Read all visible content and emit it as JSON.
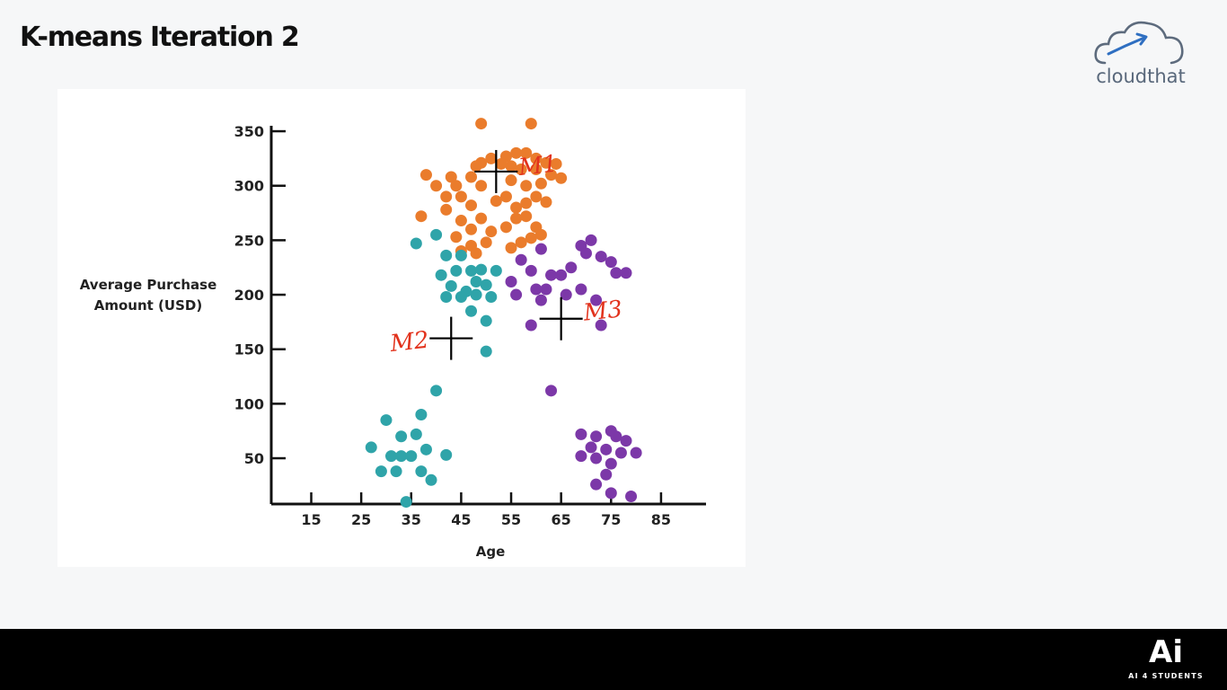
{
  "slide": {
    "title": "K-means Iteration 2"
  },
  "logo": {
    "text": "cloudthat",
    "icon": "cloud-icon"
  },
  "footer": {
    "brand_mark": "Ai",
    "brand_sub": "AI 4 STUDENTS"
  },
  "colors": {
    "cluster_1": "#ea7c2c",
    "cluster_2": "#2fa4a9",
    "cluster_3": "#7c38a8",
    "annotation": "#e2321c",
    "crosshair": "#000000"
  },
  "chart_data": {
    "type": "scatter",
    "title": "",
    "xlabel": "Age",
    "ylabel": "Average Purchase Amount (USD)",
    "xlim": [
      7,
      94
    ],
    "ylim": [
      8,
      355
    ],
    "xticks": [
      15,
      25,
      35,
      45,
      55,
      65,
      75,
      85
    ],
    "yticks": [
      50,
      100,
      150,
      200,
      250,
      300,
      350
    ],
    "grid": false,
    "legend": "none",
    "series": [
      {
        "color": "#ea7c2c",
        "points": [
          [
            49,
            357
          ],
          [
            59,
            357
          ],
          [
            51,
            325
          ],
          [
            54,
            327
          ],
          [
            56,
            330
          ],
          [
            58,
            330
          ],
          [
            53,
            320
          ],
          [
            55,
            318
          ],
          [
            60,
            325
          ],
          [
            62,
            321
          ],
          [
            64,
            320
          ],
          [
            49,
            321
          ],
          [
            48,
            318
          ],
          [
            57,
            315
          ],
          [
            60,
            315
          ],
          [
            38,
            310
          ],
          [
            40,
            300
          ],
          [
            43,
            308
          ],
          [
            44,
            300
          ],
          [
            47,
            308
          ],
          [
            49,
            300
          ],
          [
            55,
            305
          ],
          [
            58,
            300
          ],
          [
            61,
            302
          ],
          [
            63,
            310
          ],
          [
            65,
            307
          ],
          [
            42,
            290
          ],
          [
            45,
            290
          ],
          [
            47,
            282
          ],
          [
            52,
            286
          ],
          [
            54,
            290
          ],
          [
            56,
            280
          ],
          [
            58,
            284
          ],
          [
            60,
            290
          ],
          [
            62,
            285
          ],
          [
            37,
            272
          ],
          [
            42,
            278
          ],
          [
            45,
            268
          ],
          [
            47,
            260
          ],
          [
            49,
            270
          ],
          [
            51,
            258
          ],
          [
            54,
            262
          ],
          [
            56,
            270
          ],
          [
            58,
            272
          ],
          [
            60,
            262
          ],
          [
            44,
            253
          ],
          [
            47,
            245
          ],
          [
            50,
            248
          ],
          [
            55,
            243
          ],
          [
            57,
            248
          ],
          [
            59,
            252
          ],
          [
            61,
            255
          ],
          [
            45,
            240
          ],
          [
            48,
            238
          ]
        ]
      },
      {
        "color": "#2fa4a9",
        "points": [
          [
            36,
            247
          ],
          [
            40,
            255
          ],
          [
            42,
            236
          ],
          [
            45,
            236
          ],
          [
            41,
            218
          ],
          [
            44,
            222
          ],
          [
            47,
            222
          ],
          [
            49,
            223
          ],
          [
            52,
            222
          ],
          [
            43,
            208
          ],
          [
            46,
            203
          ],
          [
            48,
            212
          ],
          [
            50,
            209
          ],
          [
            42,
            198
          ],
          [
            45,
            198
          ],
          [
            48,
            200
          ],
          [
            51,
            198
          ],
          [
            47,
            185
          ],
          [
            50,
            176
          ],
          [
            50,
            148
          ],
          [
            40,
            112
          ],
          [
            30,
            85
          ],
          [
            33,
            70
          ],
          [
            36,
            72
          ],
          [
            37,
            90
          ],
          [
            38,
            58
          ],
          [
            42,
            53
          ],
          [
            27,
            60
          ],
          [
            31,
            52
          ],
          [
            33,
            52
          ],
          [
            35,
            52
          ],
          [
            29,
            38
          ],
          [
            32,
            38
          ],
          [
            37,
            38
          ],
          [
            39,
            30
          ],
          [
            34,
            10
          ]
        ]
      },
      {
        "color": "#7c38a8",
        "points": [
          [
            57,
            232
          ],
          [
            59,
            222
          ],
          [
            61,
            242
          ],
          [
            63,
            218
          ],
          [
            65,
            218
          ],
          [
            67,
            225
          ],
          [
            69,
            245
          ],
          [
            70,
            238
          ],
          [
            71,
            250
          ],
          [
            73,
            235
          ],
          [
            75,
            230
          ],
          [
            76,
            220
          ],
          [
            78,
            220
          ],
          [
            55,
            212
          ],
          [
            56,
            200
          ],
          [
            60,
            205
          ],
          [
            61,
            195
          ],
          [
            62,
            205
          ],
          [
            66,
            200
          ],
          [
            69,
            205
          ],
          [
            72,
            195
          ],
          [
            59,
            172
          ],
          [
            73,
            172
          ],
          [
            63,
            112
          ],
          [
            69,
            72
          ],
          [
            72,
            70
          ],
          [
            75,
            75
          ],
          [
            76,
            70
          ],
          [
            78,
            66
          ],
          [
            71,
            60
          ],
          [
            74,
            58
          ],
          [
            77,
            55
          ],
          [
            80,
            55
          ],
          [
            69,
            52
          ],
          [
            72,
            50
          ],
          [
            75,
            45
          ],
          [
            74,
            35
          ],
          [
            72,
            26
          ],
          [
            75,
            18
          ],
          [
            79,
            15
          ]
        ]
      }
    ],
    "centroids": [
      {
        "label": "M1",
        "x": 52,
        "y": 313
      },
      {
        "label": "M2",
        "x": 43,
        "y": 160
      },
      {
        "label": "M3",
        "x": 65,
        "y": 178
      }
    ]
  }
}
